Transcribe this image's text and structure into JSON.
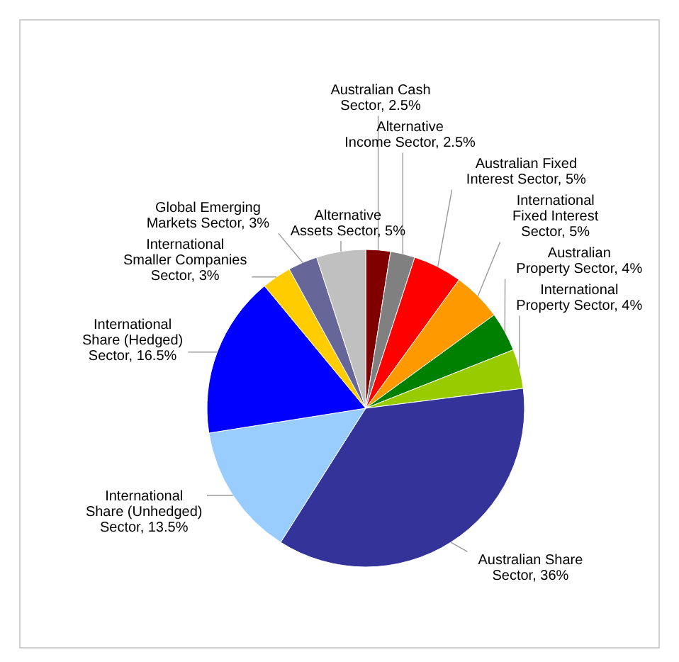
{
  "chart_data": {
    "type": "pie",
    "categories": [
      "Australian Cash Sector",
      "Alternative Income Sector",
      "Australian Fixed Interest Sector",
      "International Fixed Interest Sector",
      "Australian Property Sector",
      "International Property Sector",
      "Australian Share Sector",
      "International Share (Unhedged) Sector",
      "International Share (Hedged) Sector",
      "International Smaller Companies Sector",
      "Global Emerging Markets Sector",
      "Alternative Assets Sector"
    ],
    "values": [
      2.5,
      2.5,
      5,
      5,
      4,
      4,
      36,
      13.5,
      16.5,
      3,
      3,
      5
    ],
    "value_labels": [
      "2.5%",
      "2.5%",
      "5%",
      "5%",
      "4%",
      "4%",
      "36%",
      "13.5%",
      "16.5%",
      "3%",
      "3%",
      "5%"
    ],
    "colors": [
      "#800000",
      "#808080",
      "#ff0000",
      "#ff9900",
      "#008000",
      "#99cc00",
      "#333399",
      "#99ccff",
      "#0000ff",
      "#ffcc00",
      "#666699",
      "#c0c0c0"
    ]
  }
}
